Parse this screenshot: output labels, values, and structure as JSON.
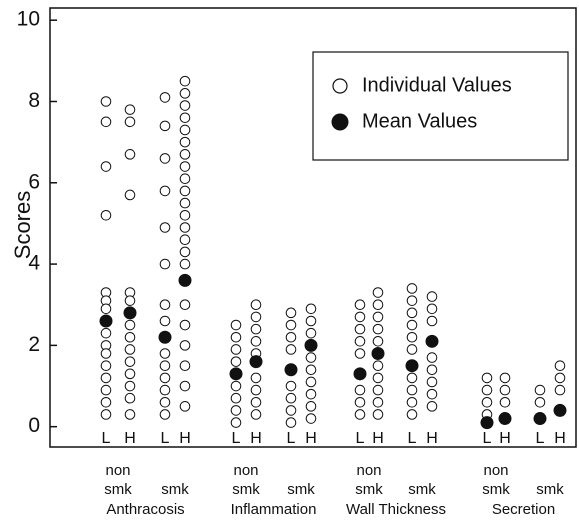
{
  "chart_data": {
    "type": "strip",
    "ylabel": "Scores",
    "ylim": [
      -0.5,
      10.3
    ],
    "yticks": [
      0,
      2,
      4,
      6,
      8,
      10
    ],
    "legend": [
      {
        "name": "Individual Values",
        "marker": "open"
      },
      {
        "name": "Mean Values",
        "marker": "filled"
      }
    ],
    "groups": [
      {
        "name": "Anthracosis",
        "subgroups": [
          {
            "label": [
              "non",
              "smk"
            ],
            "columns": [
              {
                "label": "L",
                "individual": [
                  8.0,
                  7.5,
                  6.4,
                  5.2,
                  3.3,
                  3.1,
                  2.9,
                  2.3,
                  2.0,
                  1.8,
                  1.5,
                  1.2,
                  0.9,
                  0.6,
                  0.3
                ],
                "mean": 2.6
              },
              {
                "label": "H",
                "individual": [
                  7.8,
                  7.5,
                  6.7,
                  5.7,
                  3.3,
                  3.1,
                  2.5,
                  2.2,
                  1.9,
                  1.6,
                  1.3,
                  1.0,
                  0.7,
                  0.3
                ],
                "mean": 2.8
              }
            ]
          },
          {
            "label": [
              "smk"
            ],
            "columns": [
              {
                "label": "L",
                "individual": [
                  8.1,
                  7.4,
                  6.6,
                  5.8,
                  4.9,
                  4.0,
                  3.0,
                  2.6,
                  1.8,
                  1.5,
                  1.2,
                  0.9,
                  0.6,
                  0.3
                ],
                "mean": 2.2
              },
              {
                "label": "H",
                "individual": [
                  8.5,
                  8.2,
                  7.9,
                  7.6,
                  7.3,
                  7.0,
                  6.7,
                  6.4,
                  6.1,
                  5.8,
                  5.5,
                  5.2,
                  4.9,
                  4.6,
                  4.3,
                  4.0,
                  3.0,
                  2.5,
                  2.0,
                  1.5,
                  1.0,
                  0.5
                ],
                "mean": 3.6
              }
            ]
          }
        ]
      },
      {
        "name": "Inflammation",
        "subgroups": [
          {
            "label": [
              "non",
              "smk"
            ],
            "columns": [
              {
                "label": "L",
                "individual": [
                  2.5,
                  2.2,
                  1.9,
                  1.6,
                  1.0,
                  0.7,
                  0.4,
                  0.1
                ],
                "mean": 1.3
              },
              {
                "label": "H",
                "individual": [
                  3.0,
                  2.7,
                  2.4,
                  2.1,
                  1.8,
                  1.2,
                  0.9,
                  0.6,
                  0.3
                ],
                "mean": 1.6
              }
            ]
          },
          {
            "label": [
              "smk"
            ],
            "columns": [
              {
                "label": "L",
                "individual": [
                  2.8,
                  2.5,
                  2.2,
                  1.9,
                  1.0,
                  0.7,
                  0.4,
                  0.1
                ],
                "mean": 1.4
              },
              {
                "label": "H",
                "individual": [
                  2.9,
                  2.6,
                  2.3,
                  1.7,
                  1.4,
                  1.1,
                  0.8,
                  0.5,
                  0.2
                ],
                "mean": 2.0
              }
            ]
          }
        ]
      },
      {
        "name": "Wall Thickness",
        "subgroups": [
          {
            "label": [
              "non",
              "smk"
            ],
            "columns": [
              {
                "label": "L",
                "individual": [
                  3.0,
                  2.7,
                  2.4,
                  2.1,
                  1.8,
                  0.9,
                  0.6,
                  0.3
                ],
                "mean": 1.3
              },
              {
                "label": "H",
                "individual": [
                  3.3,
                  3.0,
                  2.7,
                  2.4,
                  2.1,
                  1.5,
                  1.2,
                  0.9,
                  0.6,
                  0.3
                ],
                "mean": 1.8
              }
            ]
          },
          {
            "label": [
              "smk"
            ],
            "columns": [
              {
                "label": "L",
                "individual": [
                  3.4,
                  3.1,
                  2.8,
                  2.5,
                  2.2,
                  1.9,
                  1.2,
                  0.9,
                  0.6,
                  0.3
                ],
                "mean": 1.5
              },
              {
                "label": "H",
                "individual": [
                  3.2,
                  2.9,
                  2.6,
                  1.7,
                  1.4,
                  1.1,
                  0.8,
                  0.5
                ],
                "mean": 2.1
              }
            ]
          }
        ]
      },
      {
        "name": "Secretion",
        "subgroups": [
          {
            "label": [
              "non",
              "smk"
            ],
            "columns": [
              {
                "label": "L",
                "individual": [
                  1.2,
                  0.9,
                  0.6,
                  0.3
                ],
                "mean": 0.1
              },
              {
                "label": "H",
                "individual": [
                  1.2,
                  0.9,
                  0.6
                ],
                "mean": 0.2
              }
            ]
          },
          {
            "label": [
              "smk"
            ],
            "columns": [
              {
                "label": "L",
                "individual": [
                  0.9,
                  0.6
                ],
                "mean": 0.2
              },
              {
                "label": "H",
                "individual": [
                  1.5,
                  1.2,
                  0.9
                ],
                "mean": 0.4
              }
            ]
          }
        ]
      }
    ]
  }
}
